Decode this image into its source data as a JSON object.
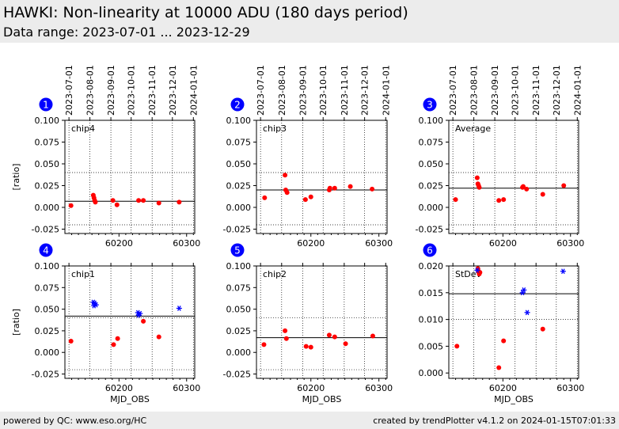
{
  "header": {
    "title": "HAWKI: Non-linearity at 10000 ADU (180 days period)",
    "subtitle": "Data range: 2023-07-01 ... 2023-12-29"
  },
  "footer": {
    "left": "powered by QC: www.eso.org/HC",
    "right": "created by trendPlotter v4.1.2 on 2024-01-15T07:01:33"
  },
  "colors": {
    "ok": "#ff0000",
    "outlier": "#0000ff",
    "badge": "#0000ff"
  },
  "chart_data": {
    "type": "scatter",
    "date_ticks": [
      "2023-07-01",
      "2023-08-01",
      "2023-09-01",
      "2023-10-01",
      "2023-11-01",
      "2023-12-01",
      "2024-01-01"
    ],
    "date_tick_mjd": [
      60126,
      60157,
      60188,
      60218,
      60249,
      60279,
      60310
    ],
    "xlim_mjd": [
      60120,
      60312
    ],
    "xticks": [
      60200,
      60300
    ],
    "xlabel": "MJD_OBS",
    "ylabel": "[ratio]",
    "panels": [
      {
        "number": "1",
        "label": "chip4",
        "ylim": [
          -0.03,
          0.1
        ],
        "yticks": [
          -0.025,
          0.0,
          0.025,
          0.05,
          0.075,
          0.1
        ],
        "mean": 0.007,
        "limits": [
          -0.02,
          0.04
        ],
        "show_ylabel": true,
        "show_xlabel": false,
        "points": [
          [
            60129,
            0.002
          ],
          [
            60162,
            0.014
          ],
          [
            60163,
            0.011
          ],
          [
            60164,
            0.008
          ],
          [
            60165,
            0.006
          ],
          [
            60191,
            0.008
          ],
          [
            60197,
            0.003
          ],
          [
            60229,
            0.008
          ],
          [
            60236,
            0.008
          ],
          [
            60259,
            0.005
          ],
          [
            60289,
            0.006
          ]
        ],
        "outliers": []
      },
      {
        "number": "2",
        "label": "chip3",
        "ylim": [
          -0.03,
          0.1
        ],
        "yticks": [
          -0.025,
          0.0,
          0.025,
          0.05,
          0.075,
          0.1
        ],
        "mean": 0.02,
        "limits": [
          -0.02,
          0.04
        ],
        "show_ylabel": false,
        "show_xlabel": false,
        "points": [
          [
            60132,
            0.011
          ],
          [
            60162,
            0.037
          ],
          [
            60163,
            0.02
          ],
          [
            60165,
            0.017
          ],
          [
            60192,
            0.009
          ],
          [
            60200,
            0.012
          ],
          [
            60227,
            0.02
          ],
          [
            60228,
            0.022
          ],
          [
            60235,
            0.022
          ],
          [
            60258,
            0.024
          ],
          [
            60290,
            0.021
          ]
        ],
        "outliers": []
      },
      {
        "number": "3",
        "label": "Average",
        "ylim": [
          -0.03,
          0.1
        ],
        "yticks": [
          -0.025,
          0.0,
          0.025,
          0.05,
          0.075,
          0.1
        ],
        "mean": 0.022,
        "limits": [
          -0.02,
          0.04
        ],
        "show_ylabel": false,
        "show_xlabel": false,
        "points": [
          [
            60130,
            0.009
          ],
          [
            60162,
            0.034
          ],
          [
            60163,
            0.027
          ],
          [
            60164,
            0.025
          ],
          [
            60165,
            0.023
          ],
          [
            60194,
            0.008
          ],
          [
            60201,
            0.009
          ],
          [
            60229,
            0.023
          ],
          [
            60230,
            0.024
          ],
          [
            60235,
            0.021
          ],
          [
            60259,
            0.015
          ],
          [
            60290,
            0.025
          ]
        ],
        "outliers": []
      },
      {
        "number": "4",
        "label": "chip1",
        "ylim": [
          -0.03,
          0.1
        ],
        "yticks": [
          -0.025,
          0.0,
          0.025,
          0.05,
          0.075,
          0.1
        ],
        "mean": 0.042,
        "limits": [
          -0.02,
          0.04
        ],
        "show_ylabel": true,
        "show_xlabel": true,
        "points": [
          [
            60129,
            0.013
          ],
          [
            60192,
            0.009
          ],
          [
            60198,
            0.016
          ],
          [
            60236,
            0.036
          ],
          [
            60259,
            0.018
          ]
        ],
        "outliers": [
          [
            60162,
            0.058
          ],
          [
            60163,
            0.054
          ],
          [
            60164,
            0.057
          ],
          [
            60166,
            0.055
          ],
          [
            60228,
            0.046
          ],
          [
            60229,
            0.043
          ],
          [
            60231,
            0.045
          ],
          [
            60289,
            0.051
          ]
        ]
      },
      {
        "number": "5",
        "label": "chip2",
        "ylim": [
          -0.03,
          0.1
        ],
        "yticks": [
          -0.025,
          0.0,
          0.025,
          0.05,
          0.075,
          0.1
        ],
        "mean": 0.017,
        "limits": [
          -0.02,
          0.04
        ],
        "show_ylabel": false,
        "show_xlabel": true,
        "points": [
          [
            60131,
            0.009
          ],
          [
            60162,
            0.025
          ],
          [
            60164,
            0.016
          ],
          [
            60193,
            0.007
          ],
          [
            60200,
            0.006
          ],
          [
            60227,
            0.02
          ],
          [
            60235,
            0.018
          ],
          [
            60251,
            0.01
          ],
          [
            60291,
            0.019
          ]
        ],
        "outliers": []
      },
      {
        "number": "6",
        "label": "StDev",
        "ylim": [
          -0.001,
          0.02
        ],
        "yticks": [
          0.0,
          0.005,
          0.01,
          0.015,
          0.02
        ],
        "ytick_decimals": 3,
        "mean": 0.0148,
        "limits": null,
        "show_ylabel": false,
        "show_xlabel": true,
        "points": [
          [
            60132,
            0.005
          ],
          [
            60163,
            0.0195
          ],
          [
            60164,
            0.019
          ],
          [
            60165,
            0.0185
          ],
          [
            60166,
            0.0188
          ],
          [
            60194,
            0.001
          ],
          [
            60201,
            0.006
          ],
          [
            60259,
            0.0082
          ]
        ],
        "outliers": [
          [
            60162,
            0.0192
          ],
          [
            60229,
            0.015
          ],
          [
            60231,
            0.0155
          ],
          [
            60236,
            0.0113
          ],
          [
            60289,
            0.019
          ]
        ]
      }
    ]
  }
}
